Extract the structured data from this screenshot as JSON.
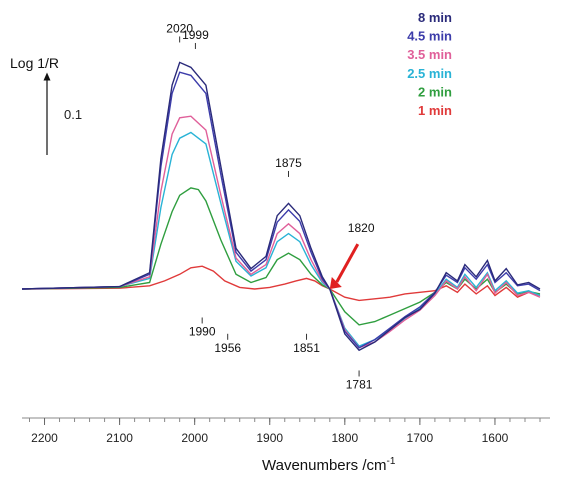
{
  "chart_data": {
    "type": "line",
    "xlabel": "Wavenumbers /cm",
    "xlabel_sup": "-1",
    "ylabel": "Log 1/R",
    "scale_bar_label": "0.1",
    "scale_bar_value": 0.1,
    "xlim": [
      2230,
      1540
    ],
    "ylim": [
      -0.13,
      0.33
    ],
    "x_reversed": true,
    "x_ticks": [
      "2200",
      "2100",
      "2000",
      "1900",
      "1800",
      "1700",
      "1600"
    ],
    "x_tick_values": [
      2200,
      2100,
      2000,
      1900,
      1800,
      1700,
      1600
    ],
    "legend_position": "top-right",
    "annotations": [
      {
        "text": "2020",
        "x": 2020,
        "y": 0.3
      },
      {
        "text": "1999",
        "x": 1999,
        "y": 0.292
      },
      {
        "text": "1875",
        "x": 1875,
        "y": 0.135
      },
      {
        "text": "1820",
        "x": 1820,
        "y": 0.06
      },
      {
        "text": "1990",
        "x": 1990,
        "y": -0.03
      },
      {
        "text": "1956",
        "x": 1956,
        "y": -0.05
      },
      {
        "text": "1851",
        "x": 1851,
        "y": -0.05
      },
      {
        "text": "1781",
        "x": 1781,
        "y": -0.095
      }
    ],
    "series": [
      {
        "name": "8 min",
        "color": "#2a2a7a",
        "points": [
          [
            2230,
            0.0
          ],
          [
            2100,
            0.003
          ],
          [
            2060,
            0.02
          ],
          [
            2045,
            0.16
          ],
          [
            2030,
            0.25
          ],
          [
            2020,
            0.278
          ],
          [
            2005,
            0.272
          ],
          [
            1985,
            0.25
          ],
          [
            1965,
            0.15
          ],
          [
            1945,
            0.05
          ],
          [
            1925,
            0.025
          ],
          [
            1905,
            0.04
          ],
          [
            1890,
            0.09
          ],
          [
            1875,
            0.105
          ],
          [
            1860,
            0.09
          ],
          [
            1845,
            0.05
          ],
          [
            1830,
            0.015
          ],
          [
            1820,
            0.0
          ],
          [
            1800,
            -0.055
          ],
          [
            1781,
            -0.075
          ],
          [
            1760,
            -0.065
          ],
          [
            1740,
            -0.05
          ],
          [
            1720,
            -0.035
          ],
          [
            1700,
            -0.025
          ],
          [
            1680,
            -0.005
          ],
          [
            1665,
            0.02
          ],
          [
            1650,
            0.01
          ],
          [
            1640,
            0.03
          ],
          [
            1625,
            0.015
          ],
          [
            1610,
            0.035
          ],
          [
            1600,
            0.01
          ],
          [
            1585,
            0.025
          ],
          [
            1570,
            0.005
          ],
          [
            1555,
            0.008
          ],
          [
            1540,
            0.0
          ]
        ]
      },
      {
        "name": "4.5 min",
        "color": "#3c3caa",
        "points": [
          [
            2230,
            0.0
          ],
          [
            2100,
            0.003
          ],
          [
            2060,
            0.018
          ],
          [
            2045,
            0.15
          ],
          [
            2030,
            0.24
          ],
          [
            2020,
            0.266
          ],
          [
            2005,
            0.262
          ],
          [
            1985,
            0.24
          ],
          [
            1965,
            0.14
          ],
          [
            1945,
            0.045
          ],
          [
            1925,
            0.022
          ],
          [
            1905,
            0.036
          ],
          [
            1890,
            0.082
          ],
          [
            1875,
            0.097
          ],
          [
            1860,
            0.083
          ],
          [
            1845,
            0.045
          ],
          [
            1830,
            0.012
          ],
          [
            1820,
            0.0
          ],
          [
            1800,
            -0.052
          ],
          [
            1781,
            -0.072
          ],
          [
            1760,
            -0.062
          ],
          [
            1740,
            -0.048
          ],
          [
            1720,
            -0.034
          ],
          [
            1700,
            -0.022
          ],
          [
            1680,
            -0.004
          ],
          [
            1665,
            0.017
          ],
          [
            1650,
            0.008
          ],
          [
            1640,
            0.026
          ],
          [
            1625,
            0.012
          ],
          [
            1610,
            0.03
          ],
          [
            1600,
            0.008
          ],
          [
            1585,
            0.02
          ],
          [
            1570,
            0.004
          ],
          [
            1555,
            0.006
          ],
          [
            1540,
            -0.002
          ]
        ]
      },
      {
        "name": "3.5 min",
        "color": "#e0609a",
        "points": [
          [
            2230,
            0.0
          ],
          [
            2100,
            0.003
          ],
          [
            2060,
            0.015
          ],
          [
            2045,
            0.12
          ],
          [
            2030,
            0.19
          ],
          [
            2020,
            0.21
          ],
          [
            2005,
            0.212
          ],
          [
            1985,
            0.195
          ],
          [
            1965,
            0.115
          ],
          [
            1945,
            0.038
          ],
          [
            1925,
            0.018
          ],
          [
            1905,
            0.03
          ],
          [
            1890,
            0.068
          ],
          [
            1875,
            0.08
          ],
          [
            1860,
            0.068
          ],
          [
            1845,
            0.036
          ],
          [
            1830,
            0.01
          ],
          [
            1820,
            0.0
          ],
          [
            1800,
            -0.05
          ],
          [
            1781,
            -0.072
          ],
          [
            1760,
            -0.065
          ],
          [
            1740,
            -0.052
          ],
          [
            1720,
            -0.038
          ],
          [
            1700,
            -0.026
          ],
          [
            1680,
            -0.008
          ],
          [
            1665,
            0.01
          ],
          [
            1650,
            0.0
          ],
          [
            1640,
            0.015
          ],
          [
            1625,
            -0.002
          ],
          [
            1610,
            0.018
          ],
          [
            1600,
            -0.005
          ],
          [
            1585,
            0.008
          ],
          [
            1570,
            -0.008
          ],
          [
            1555,
            -0.004
          ],
          [
            1540,
            -0.01
          ]
        ]
      },
      {
        "name": "2.5 min",
        "color": "#29b3d6",
        "points": [
          [
            2230,
            0.0
          ],
          [
            2100,
            0.003
          ],
          [
            2060,
            0.013
          ],
          [
            2045,
            0.1
          ],
          [
            2030,
            0.165
          ],
          [
            2020,
            0.185
          ],
          [
            2005,
            0.192
          ],
          [
            1985,
            0.178
          ],
          [
            1965,
            0.105
          ],
          [
            1945,
            0.034
          ],
          [
            1925,
            0.016
          ],
          [
            1905,
            0.026
          ],
          [
            1890,
            0.058
          ],
          [
            1875,
            0.068
          ],
          [
            1860,
            0.058
          ],
          [
            1845,
            0.03
          ],
          [
            1830,
            0.008
          ],
          [
            1820,
            0.0
          ],
          [
            1800,
            -0.048
          ],
          [
            1781,
            -0.07
          ],
          [
            1760,
            -0.062
          ],
          [
            1740,
            -0.05
          ],
          [
            1720,
            -0.036
          ],
          [
            1700,
            -0.024
          ],
          [
            1680,
            -0.006
          ],
          [
            1665,
            0.012
          ],
          [
            1650,
            0.002
          ],
          [
            1640,
            0.018
          ],
          [
            1625,
            0.002
          ],
          [
            1610,
            0.02
          ],
          [
            1600,
            -0.002
          ],
          [
            1585,
            0.01
          ],
          [
            1570,
            -0.005
          ],
          [
            1555,
            -0.002
          ],
          [
            1540,
            -0.008
          ]
        ]
      },
      {
        "name": "2 min",
        "color": "#2f9e3f",
        "points": [
          [
            2230,
            0.0
          ],
          [
            2100,
            0.002
          ],
          [
            2060,
            0.008
          ],
          [
            2045,
            0.055
          ],
          [
            2030,
            0.095
          ],
          [
            2020,
            0.115
          ],
          [
            2005,
            0.124
          ],
          [
            1995,
            0.122
          ],
          [
            1985,
            0.108
          ],
          [
            1965,
            0.06
          ],
          [
            1945,
            0.018
          ],
          [
            1925,
            0.008
          ],
          [
            1905,
            0.014
          ],
          [
            1890,
            0.036
          ],
          [
            1875,
            0.044
          ],
          [
            1860,
            0.036
          ],
          [
            1845,
            0.018
          ],
          [
            1830,
            0.005
          ],
          [
            1820,
            0.0
          ],
          [
            1800,
            -0.028
          ],
          [
            1781,
            -0.044
          ],
          [
            1760,
            -0.04
          ],
          [
            1740,
            -0.032
          ],
          [
            1720,
            -0.024
          ],
          [
            1700,
            -0.016
          ],
          [
            1680,
            -0.004
          ],
          [
            1665,
            0.008
          ],
          [
            1650,
            0.0
          ],
          [
            1640,
            0.012
          ],
          [
            1625,
            0.0
          ],
          [
            1610,
            0.012
          ],
          [
            1600,
            -0.004
          ],
          [
            1585,
            0.006
          ],
          [
            1570,
            -0.006
          ],
          [
            1555,
            -0.003
          ],
          [
            1540,
            -0.006
          ]
        ]
      },
      {
        "name": "1 min",
        "color": "#e03a3a",
        "points": [
          [
            2230,
            0.0
          ],
          [
            2100,
            0.001
          ],
          [
            2060,
            0.004
          ],
          [
            2040,
            0.01
          ],
          [
            2020,
            0.018
          ],
          [
            2005,
            0.026
          ],
          [
            1990,
            0.028
          ],
          [
            1975,
            0.022
          ],
          [
            1960,
            0.01
          ],
          [
            1940,
            0.002
          ],
          [
            1920,
            0.0
          ],
          [
            1900,
            0.002
          ],
          [
            1880,
            0.006
          ],
          [
            1865,
            0.01
          ],
          [
            1851,
            0.013
          ],
          [
            1840,
            0.01
          ],
          [
            1830,
            0.004
          ],
          [
            1820,
            0.0
          ],
          [
            1800,
            -0.01
          ],
          [
            1781,
            -0.014
          ],
          [
            1760,
            -0.012
          ],
          [
            1740,
            -0.01
          ],
          [
            1720,
            -0.006
          ],
          [
            1700,
            -0.004
          ],
          [
            1680,
            -0.002
          ],
          [
            1665,
            0.004
          ],
          [
            1650,
            -0.004
          ],
          [
            1640,
            0.006
          ],
          [
            1625,
            -0.006
          ],
          [
            1610,
            0.004
          ],
          [
            1600,
            -0.008
          ],
          [
            1585,
            0.002
          ],
          [
            1570,
            -0.01
          ],
          [
            1555,
            -0.004
          ],
          [
            1540,
            -0.008
          ]
        ]
      }
    ]
  }
}
